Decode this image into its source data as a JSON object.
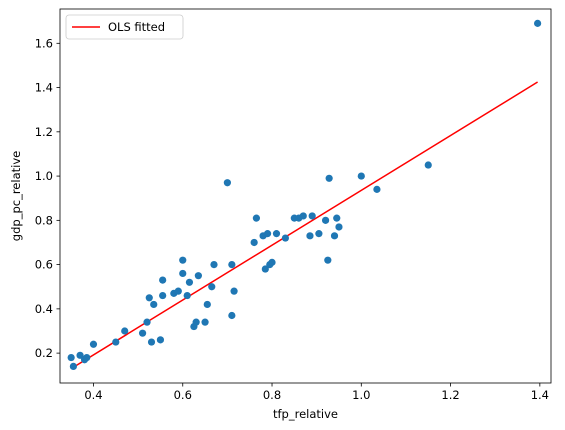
{
  "chart_data": {
    "type": "scatter",
    "xlabel": "tfp_relative",
    "ylabel": "gdp_pc_relative",
    "xlim": [
      0.325,
      1.425
    ],
    "ylim": [
      0.065,
      1.755
    ],
    "xticks": [
      0.4,
      0.6,
      0.8,
      1.0,
      1.2,
      1.4
    ],
    "xtick_labels": [
      "0.4",
      "0.6",
      "0.8",
      "1.0",
      "1.2",
      "1.4"
    ],
    "yticks": [
      0.2,
      0.4,
      0.6,
      0.8,
      1.0,
      1.2,
      1.4,
      1.6
    ],
    "ytick_labels": [
      "0.2",
      "0.4",
      "0.6",
      "0.8",
      "1.0",
      "1.2",
      "1.4",
      "1.6"
    ],
    "grid": false,
    "legend": {
      "position": "top-left",
      "entries": [
        "OLS fitted"
      ]
    },
    "points": [
      {
        "x": 0.35,
        "y": 0.18
      },
      {
        "x": 0.355,
        "y": 0.14
      },
      {
        "x": 0.37,
        "y": 0.19
      },
      {
        "x": 0.38,
        "y": 0.17
      },
      {
        "x": 0.385,
        "y": 0.18
      },
      {
        "x": 0.4,
        "y": 0.24
      },
      {
        "x": 0.45,
        "y": 0.25
      },
      {
        "x": 0.47,
        "y": 0.3
      },
      {
        "x": 0.51,
        "y": 0.29
      },
      {
        "x": 0.52,
        "y": 0.34
      },
      {
        "x": 0.525,
        "y": 0.45
      },
      {
        "x": 0.53,
        "y": 0.25
      },
      {
        "x": 0.535,
        "y": 0.42
      },
      {
        "x": 0.55,
        "y": 0.26
      },
      {
        "x": 0.555,
        "y": 0.46
      },
      {
        "x": 0.555,
        "y": 0.53
      },
      {
        "x": 0.58,
        "y": 0.47
      },
      {
        "x": 0.59,
        "y": 0.48
      },
      {
        "x": 0.6,
        "y": 0.56
      },
      {
        "x": 0.6,
        "y": 0.62
      },
      {
        "x": 0.61,
        "y": 0.46
      },
      {
        "x": 0.615,
        "y": 0.52
      },
      {
        "x": 0.625,
        "y": 0.32
      },
      {
        "x": 0.63,
        "y": 0.34
      },
      {
        "x": 0.635,
        "y": 0.55
      },
      {
        "x": 0.65,
        "y": 0.34
      },
      {
        "x": 0.655,
        "y": 0.42
      },
      {
        "x": 0.665,
        "y": 0.5
      },
      {
        "x": 0.67,
        "y": 0.6
      },
      {
        "x": 0.7,
        "y": 0.97
      },
      {
        "x": 0.71,
        "y": 0.37
      },
      {
        "x": 0.71,
        "y": 0.6
      },
      {
        "x": 0.715,
        "y": 0.48
      },
      {
        "x": 0.76,
        "y": 0.7
      },
      {
        "x": 0.765,
        "y": 0.81
      },
      {
        "x": 0.78,
        "y": 0.73
      },
      {
        "x": 0.785,
        "y": 0.58
      },
      {
        "x": 0.79,
        "y": 0.74
      },
      {
        "x": 0.795,
        "y": 0.6
      },
      {
        "x": 0.8,
        "y": 0.61
      },
      {
        "x": 0.81,
        "y": 0.74
      },
      {
        "x": 0.83,
        "y": 0.72
      },
      {
        "x": 0.85,
        "y": 0.81
      },
      {
        "x": 0.86,
        "y": 0.81
      },
      {
        "x": 0.87,
        "y": 0.82
      },
      {
        "x": 0.885,
        "y": 0.73
      },
      {
        "x": 0.89,
        "y": 0.82
      },
      {
        "x": 0.905,
        "y": 0.74
      },
      {
        "x": 0.92,
        "y": 0.8
      },
      {
        "x": 0.925,
        "y": 0.62
      },
      {
        "x": 0.928,
        "y": 0.99
      },
      {
        "x": 0.94,
        "y": 0.73
      },
      {
        "x": 0.945,
        "y": 0.81
      },
      {
        "x": 0.95,
        "y": 0.77
      },
      {
        "x": 1.0,
        "y": 1.0
      },
      {
        "x": 1.035,
        "y": 0.94
      },
      {
        "x": 1.15,
        "y": 1.05
      },
      {
        "x": 1.395,
        "y": 1.69
      }
    ],
    "fit_line": {
      "name": "OLS fitted",
      "x": [
        0.35,
        1.395
      ],
      "y": [
        0.13,
        1.425
      ]
    },
    "colors": {
      "points": "#1f77b4",
      "fit_line": "#ff0000",
      "axes": "#000000"
    }
  }
}
